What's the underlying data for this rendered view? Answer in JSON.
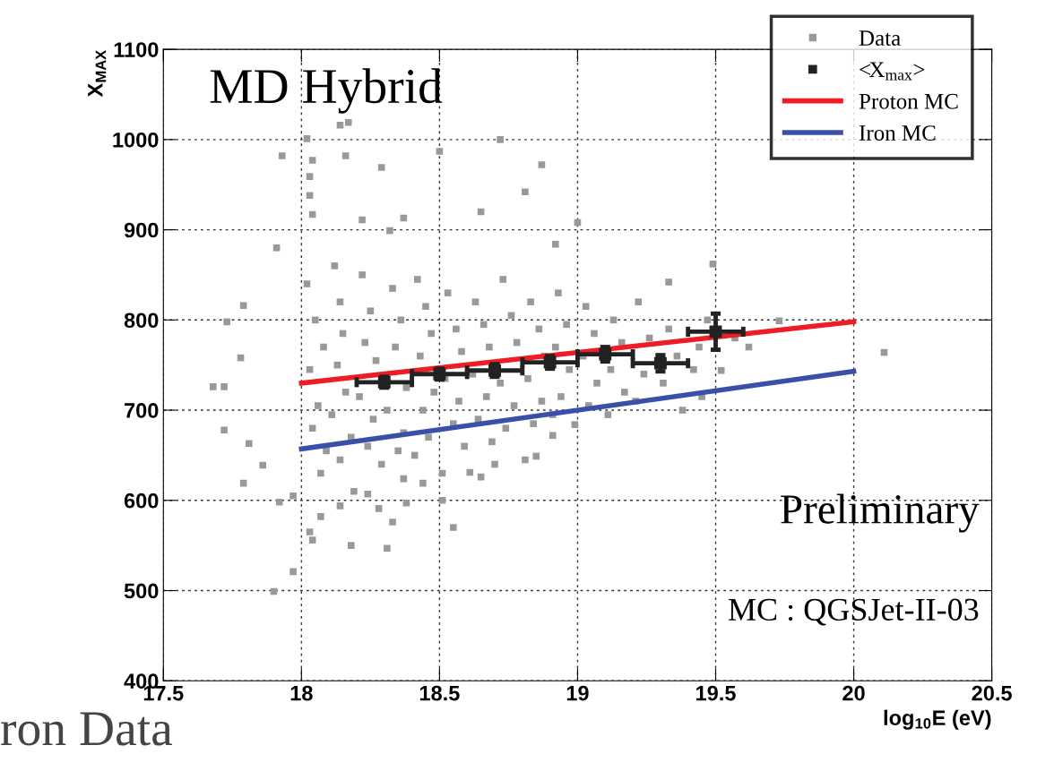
{
  "chart_data": {
    "type": "scatter",
    "xlabel": "log$_{10}$E (eV)",
    "ylabel": "X$_{MAX}$",
    "xlim": [
      17.5,
      20.5
    ],
    "xticks": [
      17.5,
      18,
      18.5,
      19,
      19.5,
      20,
      20.5
    ],
    "ylim": [
      400,
      1100
    ],
    "yticks": [
      400,
      500,
      600,
      700,
      800,
      900,
      1000,
      1100
    ],
    "grid": true,
    "legend": "top right",
    "annotations": [
      "MD Hybrid",
      "Preliminary",
      "MC : QGSJet-II-03",
      "ron Data"
    ],
    "series": [
      {
        "name": "Data",
        "color": "#999999",
        "marker": "square",
        "x": [
          18.14,
          18.17,
          18.02,
          17.93,
          18.04,
          18.16,
          18.29,
          18.5,
          18.72,
          18.87,
          18.81,
          18.65,
          18.03,
          18.03,
          18.04,
          18.22,
          18.37,
          19.0,
          18.32,
          17.91,
          18.92,
          19.49,
          19.33,
          19.73,
          20.11,
          19.52,
          17.68,
          17.72,
          17.72,
          17.79,
          17.81,
          17.86,
          17.92,
          17.97,
          17.9,
          18.03,
          18.04,
          18.07,
          18.18,
          18.31,
          18.33,
          18.28,
          18.38,
          18.55,
          18.51,
          18.65,
          18.7,
          18.81,
          18.85,
          18.91,
          18.99,
          18.44,
          18.37,
          18.24,
          18.19,
          18.51,
          18.61,
          18.14,
          17.97,
          17.79,
          17.73,
          17.78,
          18.02,
          18.05,
          18.08,
          18.03,
          18.06,
          18.04,
          18.09,
          18.07,
          18.12,
          18.14,
          18.15,
          18.13,
          18.16,
          18.11,
          18.18,
          18.14,
          18.22,
          18.25,
          18.23,
          18.27,
          18.21,
          18.26,
          18.24,
          18.29,
          18.33,
          18.36,
          18.34,
          18.38,
          18.31,
          18.37,
          18.35,
          18.42,
          18.45,
          18.47,
          18.43,
          18.48,
          18.44,
          18.46,
          18.41,
          18.53,
          18.56,
          18.58,
          18.52,
          18.57,
          18.55,
          18.59,
          18.63,
          18.66,
          18.68,
          18.62,
          18.67,
          18.64,
          18.69,
          18.73,
          18.76,
          18.78,
          18.72,
          18.77,
          18.74,
          18.83,
          18.86,
          18.88,
          18.82,
          18.87,
          18.84,
          18.93,
          18.96,
          18.92,
          18.97,
          18.94,
          18.91,
          19.03,
          19.06,
          19.02,
          19.07,
          19.04,
          19.13,
          19.16,
          19.12,
          19.17,
          19.11,
          19.22,
          19.26,
          19.24,
          19.21,
          19.33,
          19.36,
          19.31,
          19.38,
          19.44,
          19.42,
          19.47,
          19.45,
          19.57,
          19.62
        ],
        "values": [
          1016,
          1019,
          1001,
          982,
          977,
          982,
          969,
          987,
          1000,
          972,
          942,
          920,
          959,
          938,
          917,
          911,
          913,
          908,
          899,
          880,
          884,
          862,
          842,
          799,
          764,
          744,
          726,
          726,
          678,
          619,
          663,
          639,
          598,
          521,
          499,
          565,
          556,
          582,
          550,
          547,
          576,
          591,
          597,
          570,
          600,
          626,
          640,
          645,
          649,
          672,
          684,
          619,
          624,
          607,
          610,
          630,
          631,
          594,
          605,
          816,
          798,
          758,
          840,
          800,
          770,
          745,
          705,
          680,
          655,
          630,
          860,
          820,
          785,
          750,
          720,
          695,
          670,
          645,
          850,
          810,
          775,
          755,
          715,
          690,
          660,
          640,
          835,
          800,
          770,
          725,
          700,
          675,
          655,
          845,
          815,
          785,
          760,
          720,
          700,
          670,
          650,
          830,
          790,
          765,
          735,
          710,
          685,
          660,
          820,
          795,
          770,
          740,
          715,
          690,
          665,
          845,
          805,
          775,
          730,
          705,
          680,
          820,
          790,
          760,
          735,
          710,
          685,
          830,
          795,
          770,
          745,
          715,
          695,
          815,
          785,
          760,
          730,
          705,
          800,
          775,
          745,
          720,
          695,
          820,
          780,
          740,
          710,
          790,
          760,
          730,
          700,
          770,
          745,
          800,
          715,
          780,
          770
        ]
      },
      {
        "name": "<X$_{max}$>",
        "color": "#222222",
        "marker": "square",
        "x": [
          18.3,
          18.5,
          18.7,
          18.9,
          19.1,
          19.3,
          19.5
        ],
        "values": [
          731,
          740,
          744,
          753,
          762,
          752,
          787
        ],
        "errors": [
          6,
          6,
          7,
          7,
          8,
          9,
          20
        ],
        "xerrors": [
          0.1,
          0.1,
          0.1,
          0.1,
          0.1,
          0.1,
          0.1
        ]
      },
      {
        "name": "Proton MC",
        "type": "line",
        "color": "#ee1c25",
        "x": [
          18,
          20
        ],
        "values": [
          730,
          798
        ]
      },
      {
        "name": "Iron MC",
        "type": "line",
        "color": "#3a4fa8",
        "x": [
          18,
          20
        ],
        "values": [
          657,
          743
        ]
      }
    ]
  }
}
